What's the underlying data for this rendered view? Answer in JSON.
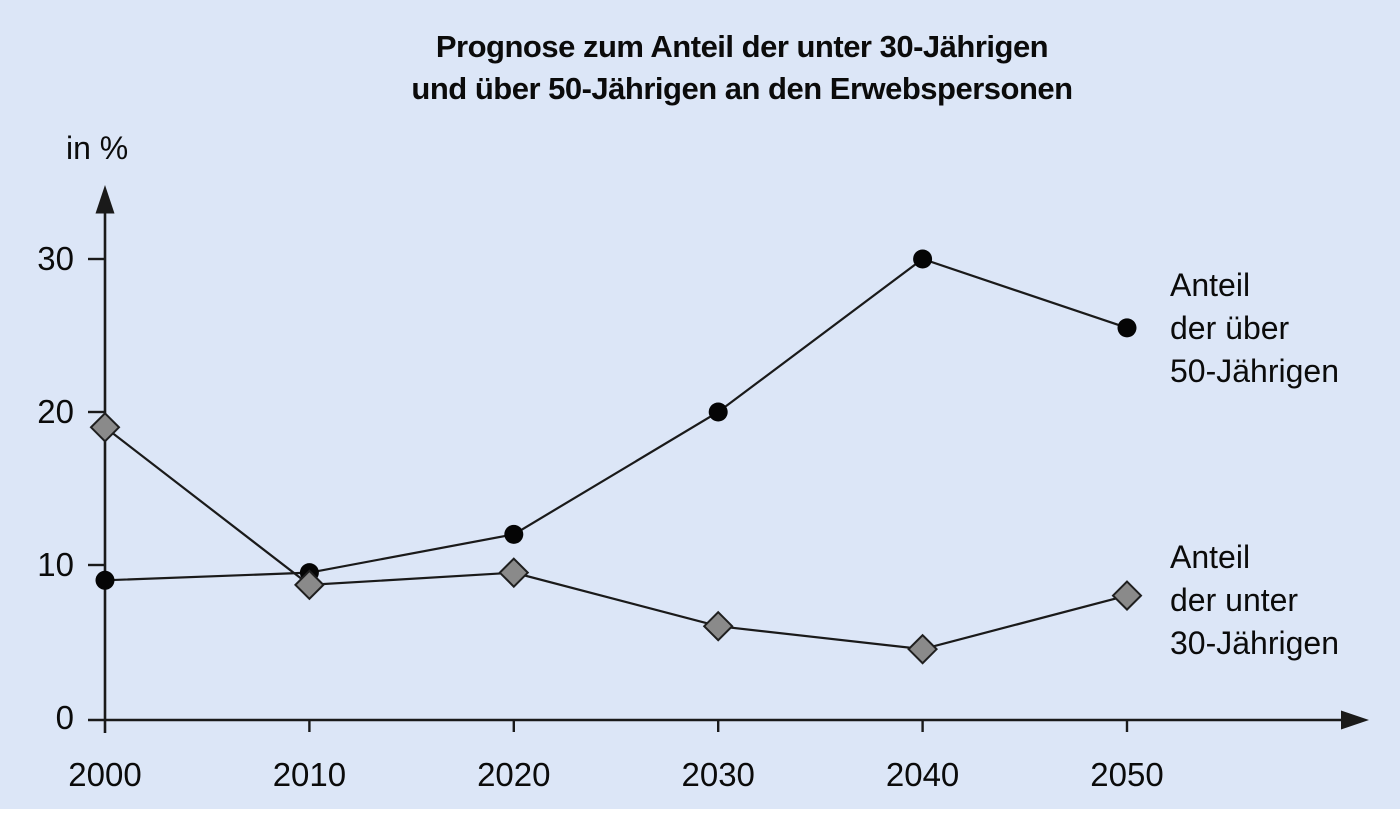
{
  "title": {
    "line1": "Prognose zum Anteil der unter 30-Jährigen",
    "line2": "und über 50-Jährigen an den Erwebspersonen"
  },
  "axis": {
    "y_unit_label": "in %",
    "y_ticks": [
      0,
      10,
      20,
      30
    ]
  },
  "series_labels": {
    "over50": {
      "line1": "Anteil",
      "line2": "der über",
      "line3": "50-Jährigen"
    },
    "under30": {
      "line1": "Anteil",
      "line2": "der unter",
      "line3": "30-Jährigen"
    }
  },
  "colors": {
    "background": "#dce6f7",
    "axis": "#1a1a1a",
    "text": "#0b0b0b",
    "line": "#1a1a1a",
    "circle_fill": "#050505",
    "diamond_fill": "#8a8a8a",
    "diamond_stroke": "#1f1f1f"
  },
  "chart_data": {
    "type": "line",
    "title": "Prognose zum Anteil der unter 30-Jährigen und über 50-Jährigen an den Erwebspersonen",
    "xlabel": "",
    "ylabel": "in %",
    "x": [
      2000,
      2010,
      2020,
      2030,
      2040,
      2050
    ],
    "series": [
      {
        "name": "Anteil der über 50-Jährigen",
        "marker": "circle",
        "values": [
          9,
          9.5,
          12,
          20,
          30,
          25.5
        ]
      },
      {
        "name": "Anteil der unter 30-Jährigen",
        "marker": "diamond",
        "values": [
          19,
          8.7,
          9.5,
          6,
          4.5,
          8
        ]
      }
    ],
    "xlim": [
      2000,
      2050
    ],
    "ylim": [
      0,
      34
    ],
    "grid": false,
    "legend_position": "right-of-lines"
  }
}
